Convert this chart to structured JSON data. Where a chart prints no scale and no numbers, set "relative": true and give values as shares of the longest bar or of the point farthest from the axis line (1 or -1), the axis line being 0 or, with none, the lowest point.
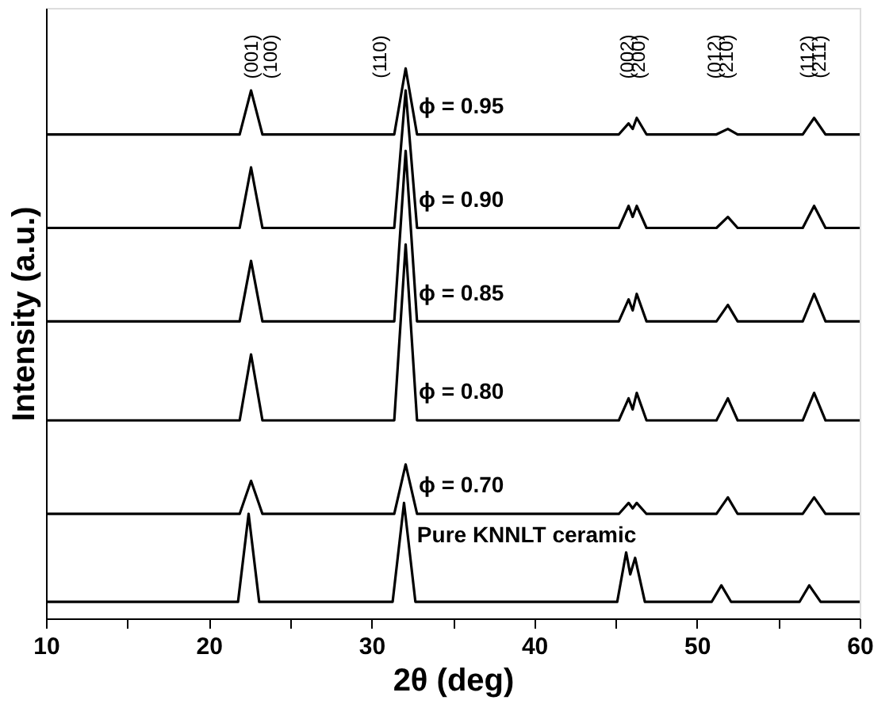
{
  "chart_data": {
    "type": "line",
    "relative": true,
    "xlabel": "2θ (deg)",
    "ylabel": "Intensity (a.u.)",
    "xlim": [
      10,
      60
    ],
    "xticks": [
      10,
      {
        "value": 15,
        "label": null
      },
      20,
      {
        "value": 25,
        "label": null
      },
      30,
      {
        "value": 35,
        "label": null
      },
      40,
      {
        "value": 45,
        "label": null
      },
      50,
      {
        "value": 55,
        "label": null
      },
      60
    ],
    "tick_labels": "x",
    "grid": false,
    "legend": false,
    "marker": "none",
    "line_style": "solid",
    "series": [
      {
        "name": "ϕ = 0.95",
        "color": "#000000",
        "x": [
          10,
          21.9,
          22.6,
          23.3,
          31.4,
          32.1,
          32.8,
          45.2,
          45.8,
          46.05,
          46.3,
          46.9,
          51.2,
          51.9,
          52.5,
          56.5,
          57.2,
          57.9,
          60
        ],
        "values": [
          0.88,
          0.88,
          0.96,
          0.88,
          0.88,
          1.0,
          0.88,
          0.88,
          0.9,
          0.89,
          0.91,
          0.88,
          0.88,
          0.89,
          0.88,
          0.88,
          0.91,
          0.88,
          0.88
        ]
      },
      {
        "name": "ϕ = 0.90",
        "color": "#000000",
        "x": [
          10,
          21.9,
          22.6,
          23.3,
          31.4,
          32.1,
          32.8,
          45.2,
          45.8,
          46.05,
          46.3,
          46.9,
          51.2,
          51.9,
          52.5,
          56.5,
          57.2,
          57.9,
          60
        ],
        "values": [
          0.71,
          0.71,
          0.82,
          0.71,
          0.71,
          0.96,
          0.71,
          0.71,
          0.75,
          0.73,
          0.75,
          0.71,
          0.71,
          0.73,
          0.71,
          0.71,
          0.75,
          0.71,
          0.71
        ]
      },
      {
        "name": "ϕ = 0.85",
        "color": "#000000",
        "x": [
          10,
          21.9,
          22.6,
          23.3,
          31.4,
          32.1,
          32.8,
          45.2,
          45.8,
          46.05,
          46.3,
          46.9,
          51.2,
          51.9,
          52.5,
          56.5,
          57.2,
          57.9,
          60
        ],
        "values": [
          0.54,
          0.54,
          0.65,
          0.54,
          0.54,
          0.85,
          0.54,
          0.54,
          0.58,
          0.56,
          0.59,
          0.54,
          0.54,
          0.57,
          0.54,
          0.54,
          0.59,
          0.54,
          0.54
        ]
      },
      {
        "name": "ϕ = 0.80",
        "color": "#000000",
        "x": [
          10,
          21.9,
          22.6,
          23.3,
          31.4,
          32.1,
          32.8,
          45.2,
          45.8,
          46.05,
          46.3,
          46.9,
          51.2,
          51.9,
          52.5,
          56.5,
          57.2,
          57.9,
          60
        ],
        "values": [
          0.36,
          0.36,
          0.48,
          0.36,
          0.36,
          0.68,
          0.36,
          0.36,
          0.4,
          0.38,
          0.41,
          0.36,
          0.36,
          0.4,
          0.36,
          0.36,
          0.41,
          0.36,
          0.36
        ]
      },
      {
        "name": "ϕ = 0.70",
        "color": "#000000",
        "x": [
          10,
          21.9,
          22.6,
          23.3,
          31.4,
          32.1,
          32.8,
          45.2,
          45.8,
          46.05,
          46.3,
          46.9,
          51.2,
          51.9,
          52.5,
          56.5,
          57.2,
          57.9,
          60
        ],
        "values": [
          0.19,
          0.19,
          0.25,
          0.19,
          0.19,
          0.28,
          0.19,
          0.19,
          0.21,
          0.2,
          0.21,
          0.19,
          0.19,
          0.22,
          0.19,
          0.19,
          0.22,
          0.19,
          0.19
        ]
      },
      {
        "name": "Pure KNNLT ceramic",
        "color": "#000000",
        "x": [
          10,
          21.8,
          22.45,
          23.1,
          31.3,
          32.0,
          32.7,
          45.1,
          45.65,
          45.9,
          46.2,
          46.8,
          50.9,
          51.5,
          52.1,
          56.3,
          56.9,
          57.6,
          60
        ],
        "values": [
          0.03,
          0.03,
          0.19,
          0.03,
          0.03,
          0.21,
          0.03,
          0.03,
          0.12,
          0.08,
          0.11,
          0.03,
          0.03,
          0.06,
          0.03,
          0.03,
          0.06,
          0.03,
          0.03
        ]
      }
    ],
    "annotations": [
      "(001)",
      "(100)",
      "(110)",
      "(002)",
      "(200)",
      "(012)",
      "(210)",
      "(112)",
      "(211)"
    ]
  }
}
